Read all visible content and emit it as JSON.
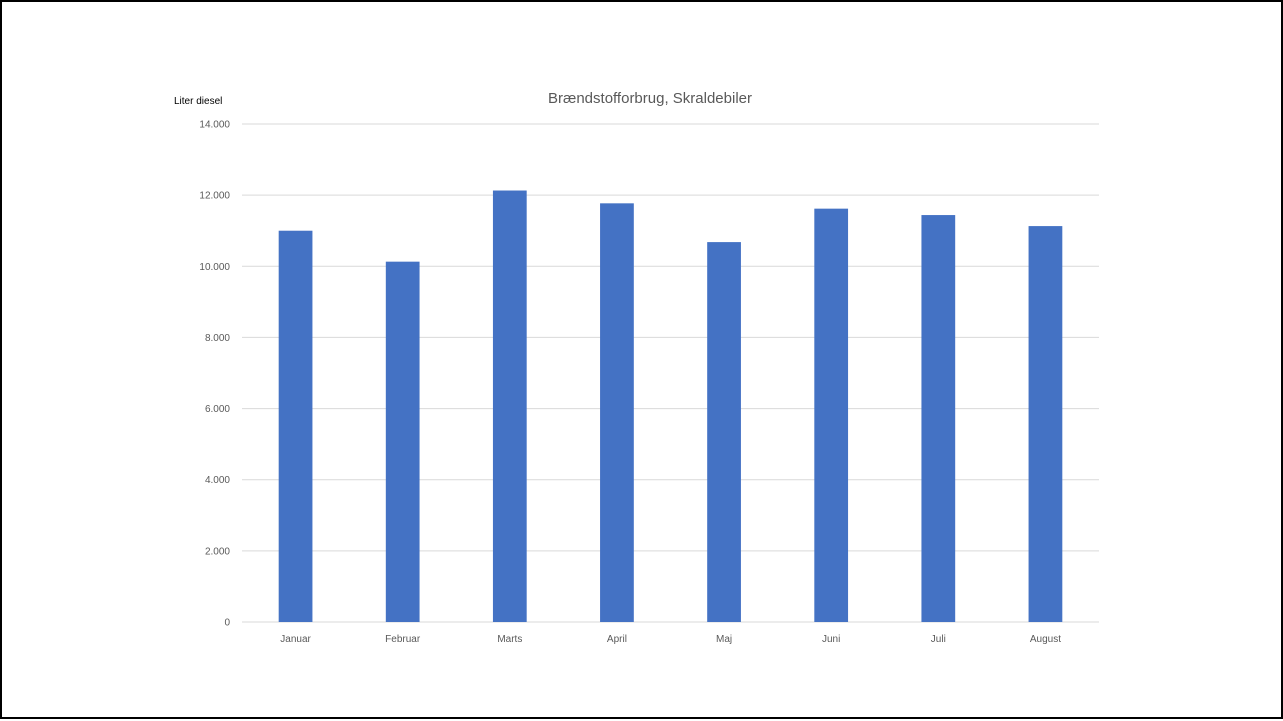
{
  "chart_data": {
    "type": "bar",
    "title": "Brændstofforbrug, Skraldebiler",
    "xlabel": "",
    "ylabel": "Liter diesel",
    "categories": [
      "Januar",
      "Februar",
      "Marts",
      "April",
      "Maj",
      "Juni",
      "Juli",
      "August"
    ],
    "values": [
      11000,
      10130,
      12130,
      11770,
      10680,
      11620,
      11440,
      11130
    ],
    "ylim": [
      0,
      14000
    ],
    "yticks": [
      0,
      2000,
      4000,
      6000,
      8000,
      10000,
      12000,
      14000
    ],
    "ytick_labels": [
      "0",
      "2.000",
      "4.000",
      "6.000",
      "8.000",
      "10.000",
      "12.000",
      "14.000"
    ],
    "grid": true,
    "legend": false,
    "colors": {
      "bar": "#4472c4",
      "grid": "#d9d9d9",
      "text": "#595959"
    }
  }
}
